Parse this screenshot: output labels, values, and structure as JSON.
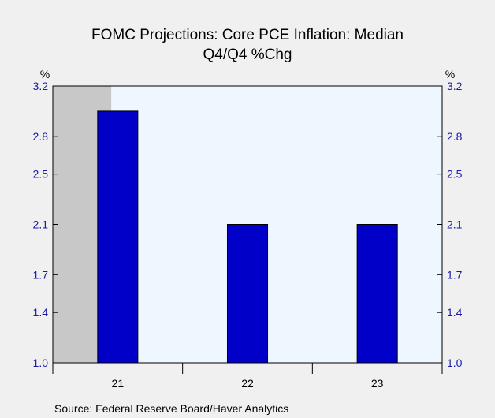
{
  "chart_data": {
    "type": "bar",
    "title": "FOMC Projections: Core PCE Inflation: Median",
    "subtitle": "Q4/Q4 %Chg",
    "categories": [
      "21",
      "22",
      "23"
    ],
    "values": [
      3.0,
      2.1,
      2.1
    ],
    "y_unit_left": "%",
    "y_unit_right": "%",
    "ylim": [
      1.0,
      3.2
    ],
    "yticks": [
      "1.0",
      "1.4",
      "1.7",
      "2.1",
      "2.5",
      "2.8",
      "3.2"
    ],
    "grid": false,
    "shaded_region": "21",
    "source": "Source:  Federal Reserve Board/Haver Analytics",
    "colors": {
      "bar_fill": "#0000c8",
      "bar_stroke": "#000000",
      "plot_background": "#eef6ff",
      "shade": "#c8c8c8",
      "tick_label": "#1a1aa8"
    }
  }
}
